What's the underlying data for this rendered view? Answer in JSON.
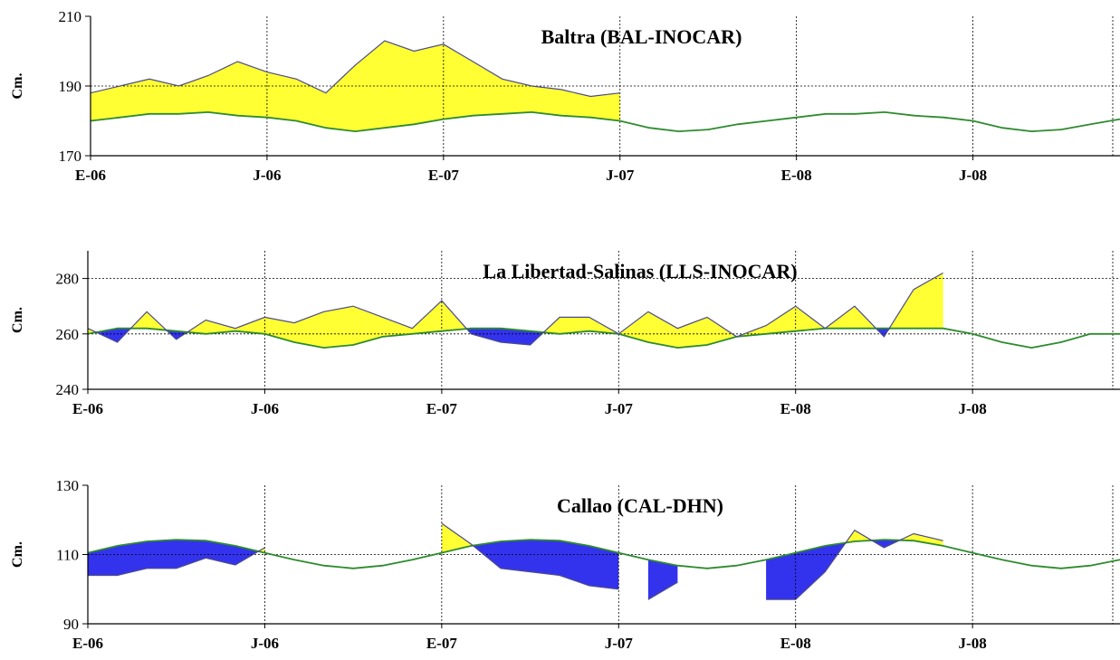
{
  "chart_data": [
    {
      "type": "area",
      "title": "Baltra (BAL-INOCAR)",
      "ylabel": "Cm.",
      "ylim": [
        170,
        210
      ],
      "yticks": [
        170,
        190,
        210
      ],
      "gridlines_y": [
        190
      ],
      "xlim": [
        "2006-01",
        "2008-12"
      ],
      "xticks": [
        {
          "label": "E-06",
          "date": "2006-01"
        },
        {
          "label": "J-06",
          "date": "2006-07"
        },
        {
          "label": "E-07",
          "date": "2007-01"
        },
        {
          "label": "J-07",
          "date": "2007-07"
        },
        {
          "label": "E-08",
          "date": "2008-01"
        },
        {
          "label": "J-08",
          "date": "2008-07"
        }
      ],
      "above_color": "#ffff33",
      "below_color": "#3333ee",
      "series": [
        {
          "role": "observed",
          "color": "#4b4b8c",
          "x": [
            "2006-01",
            "2006-02",
            "2006-03",
            "2006-04",
            "2006-05",
            "2006-06",
            "2006-07",
            "2006-08",
            "2006-09",
            "2006-10",
            "2006-11",
            "2006-12",
            "2007-01",
            "2007-02",
            "2007-03",
            "2007-04",
            "2007-05",
            "2007-06",
            "2007-07"
          ],
          "y": [
            188,
            190,
            192,
            190,
            193,
            197,
            194,
            192,
            188,
            196,
            203,
            200,
            202,
            197,
            192,
            190,
            189,
            187,
            188
          ]
        },
        {
          "role": "reference",
          "color": "#2e8b2e",
          "x": [
            "2006-01",
            "2006-02",
            "2006-03",
            "2006-04",
            "2006-05",
            "2006-06",
            "2006-07",
            "2006-08",
            "2006-09",
            "2006-10",
            "2006-11",
            "2006-12",
            "2007-01",
            "2007-02",
            "2007-03",
            "2007-04",
            "2007-05",
            "2007-06",
            "2007-07",
            "2007-08",
            "2007-09",
            "2007-10",
            "2007-11",
            "2007-12",
            "2008-01",
            "2008-02",
            "2008-03",
            "2008-04",
            "2008-05",
            "2008-06",
            "2008-07",
            "2008-08",
            "2008-09",
            "2008-10",
            "2008-11",
            "2008-12"
          ],
          "y": [
            180,
            181,
            182,
            182,
            182.5,
            181.5,
            181,
            180,
            178,
            177,
            178,
            179,
            180.5,
            181.5,
            182,
            182.5,
            181.5,
            181,
            180,
            178,
            177,
            177.5,
            179,
            180,
            181,
            182,
            182,
            182.5,
            181.5,
            181,
            180,
            178,
            177,
            177.5,
            179,
            180.5
          ]
        }
      ]
    },
    {
      "type": "area",
      "title": "La Libertad-Salinas (LLS-INOCAR)",
      "ylabel": "Cm.",
      "ylim": [
        240,
        290
      ],
      "yticks": [
        240,
        260,
        280
      ],
      "gridlines_y": [
        260,
        280
      ],
      "xlim": [
        "2006-01",
        "2008-12"
      ],
      "xticks": [
        {
          "label": "E-06",
          "date": "2006-01"
        },
        {
          "label": "J-06",
          "date": "2006-07"
        },
        {
          "label": "E-07",
          "date": "2007-01"
        },
        {
          "label": "J-07",
          "date": "2007-07"
        },
        {
          "label": "E-08",
          "date": "2008-01"
        },
        {
          "label": "J-08",
          "date": "2008-07"
        }
      ],
      "above_color": "#ffff33",
      "below_color": "#3333ee",
      "series": [
        {
          "role": "observed",
          "color": "#4b4b8c",
          "x": [
            "2006-01",
            "2006-02",
            "2006-03",
            "2006-04",
            "2006-05",
            "2006-06",
            "2006-07",
            "2006-08",
            "2006-09",
            "2006-10",
            "2006-11",
            "2006-12",
            "2007-01",
            "2007-02",
            "2007-03",
            "2007-04",
            "2007-05",
            "2007-06",
            "2007-07",
            "2007-08",
            "2007-09",
            "2007-10",
            "2007-11",
            "2007-12",
            "2008-01",
            "2008-02",
            "2008-03",
            "2008-04",
            "2008-05",
            "2008-06"
          ],
          "y": [
            262,
            257,
            268,
            258,
            265,
            262,
            266,
            264,
            268,
            270,
            266,
            262,
            272,
            260,
            257,
            256,
            266,
            266,
            260,
            268,
            262,
            266,
            259,
            263,
            270,
            262,
            270,
            259,
            276,
            282
          ]
        },
        {
          "role": "reference",
          "color": "#2e8b2e",
          "x": [
            "2006-01",
            "2006-02",
            "2006-03",
            "2006-04",
            "2006-05",
            "2006-06",
            "2006-07",
            "2006-08",
            "2006-09",
            "2006-10",
            "2006-11",
            "2006-12",
            "2007-01",
            "2007-02",
            "2007-03",
            "2007-04",
            "2007-05",
            "2007-06",
            "2007-07",
            "2007-08",
            "2007-09",
            "2007-10",
            "2007-11",
            "2007-12",
            "2008-01",
            "2008-02",
            "2008-03",
            "2008-04",
            "2008-05",
            "2008-06",
            "2008-07",
            "2008-08",
            "2008-09",
            "2008-10",
            "2008-11",
            "2008-12"
          ],
          "y": [
            260,
            262,
            262,
            261,
            260,
            261,
            260,
            257,
            255,
            256,
            259,
            260,
            261,
            262,
            262,
            261,
            260,
            261,
            260,
            257,
            255,
            256,
            259,
            260,
            261,
            262,
            262,
            262,
            262,
            262,
            260,
            257,
            255,
            257,
            260,
            260
          ]
        }
      ]
    },
    {
      "type": "area",
      "title": "Callao (CAL-DHN)",
      "ylabel": "Cm.",
      "ylim": [
        90,
        130
      ],
      "yticks": [
        90,
        110,
        130
      ],
      "gridlines_y": [
        110
      ],
      "xlim": [
        "2006-01",
        "2008-12"
      ],
      "xticks": [
        {
          "label": "E-06",
          "date": "2006-01"
        },
        {
          "label": "J-06",
          "date": "2006-07"
        },
        {
          "label": "E-07",
          "date": "2007-01"
        },
        {
          "label": "J-07",
          "date": "2007-07"
        },
        {
          "label": "E-08",
          "date": "2008-01"
        },
        {
          "label": "J-08",
          "date": "2008-07"
        }
      ],
      "above_color": "#ffff33",
      "below_color": "#3333ee",
      "series": [
        {
          "role": "observed",
          "color": "#4b4b8c",
          "segments": [
            {
              "x": [
                "2006-01",
                "2006-02",
                "2006-03",
                "2006-04",
                "2006-05",
                "2006-06",
                "2006-07"
              ],
              "y": [
                104,
                104,
                106,
                106,
                109,
                107,
                112
              ]
            },
            {
              "x": [
                "2007-01",
                "2007-02",
                "2007-03",
                "2007-04",
                "2007-05",
                "2007-06",
                "2007-07"
              ],
              "y": [
                119,
                113,
                106,
                105,
                104,
                101,
                100
              ]
            },
            {
              "x": [
                "2007-08",
                "2007-09"
              ],
              "y": [
                97,
                102
              ]
            },
            {
              "x": [
                "2007-12",
                "2008-01",
                "2008-02",
                "2008-03",
                "2008-04",
                "2008-05",
                "2008-06"
              ],
              "y": [
                97,
                97,
                105,
                117,
                112,
                116,
                114
              ]
            }
          ]
        },
        {
          "role": "reference",
          "color": "#2e8b2e",
          "x": [
            "2006-01",
            "2006-02",
            "2006-03",
            "2006-04",
            "2006-05",
            "2006-06",
            "2006-07",
            "2006-08",
            "2006-09",
            "2006-10",
            "2006-11",
            "2006-12",
            "2007-01",
            "2007-02",
            "2007-03",
            "2007-04",
            "2007-05",
            "2007-06",
            "2007-07",
            "2007-08",
            "2007-09",
            "2007-10",
            "2007-11",
            "2007-12",
            "2008-01",
            "2008-02",
            "2008-03",
            "2008-04",
            "2008-05",
            "2008-06",
            "2008-07",
            "2008-08",
            "2008-09",
            "2008-10",
            "2008-11",
            "2008-12"
          ],
          "y": [
            110.5,
            112.5,
            113.8,
            114.3,
            114,
            112.5,
            110.5,
            108.5,
            106.8,
            106,
            106.8,
            108.5,
            110.5,
            112.5,
            113.8,
            114.3,
            114,
            112.5,
            110.5,
            108.5,
            106.8,
            106,
            106.8,
            108.5,
            110.5,
            112.5,
            113.8,
            114.3,
            114,
            112.5,
            110.5,
            108.5,
            106.8,
            106,
            106.8,
            108.5
          ]
        }
      ]
    }
  ]
}
